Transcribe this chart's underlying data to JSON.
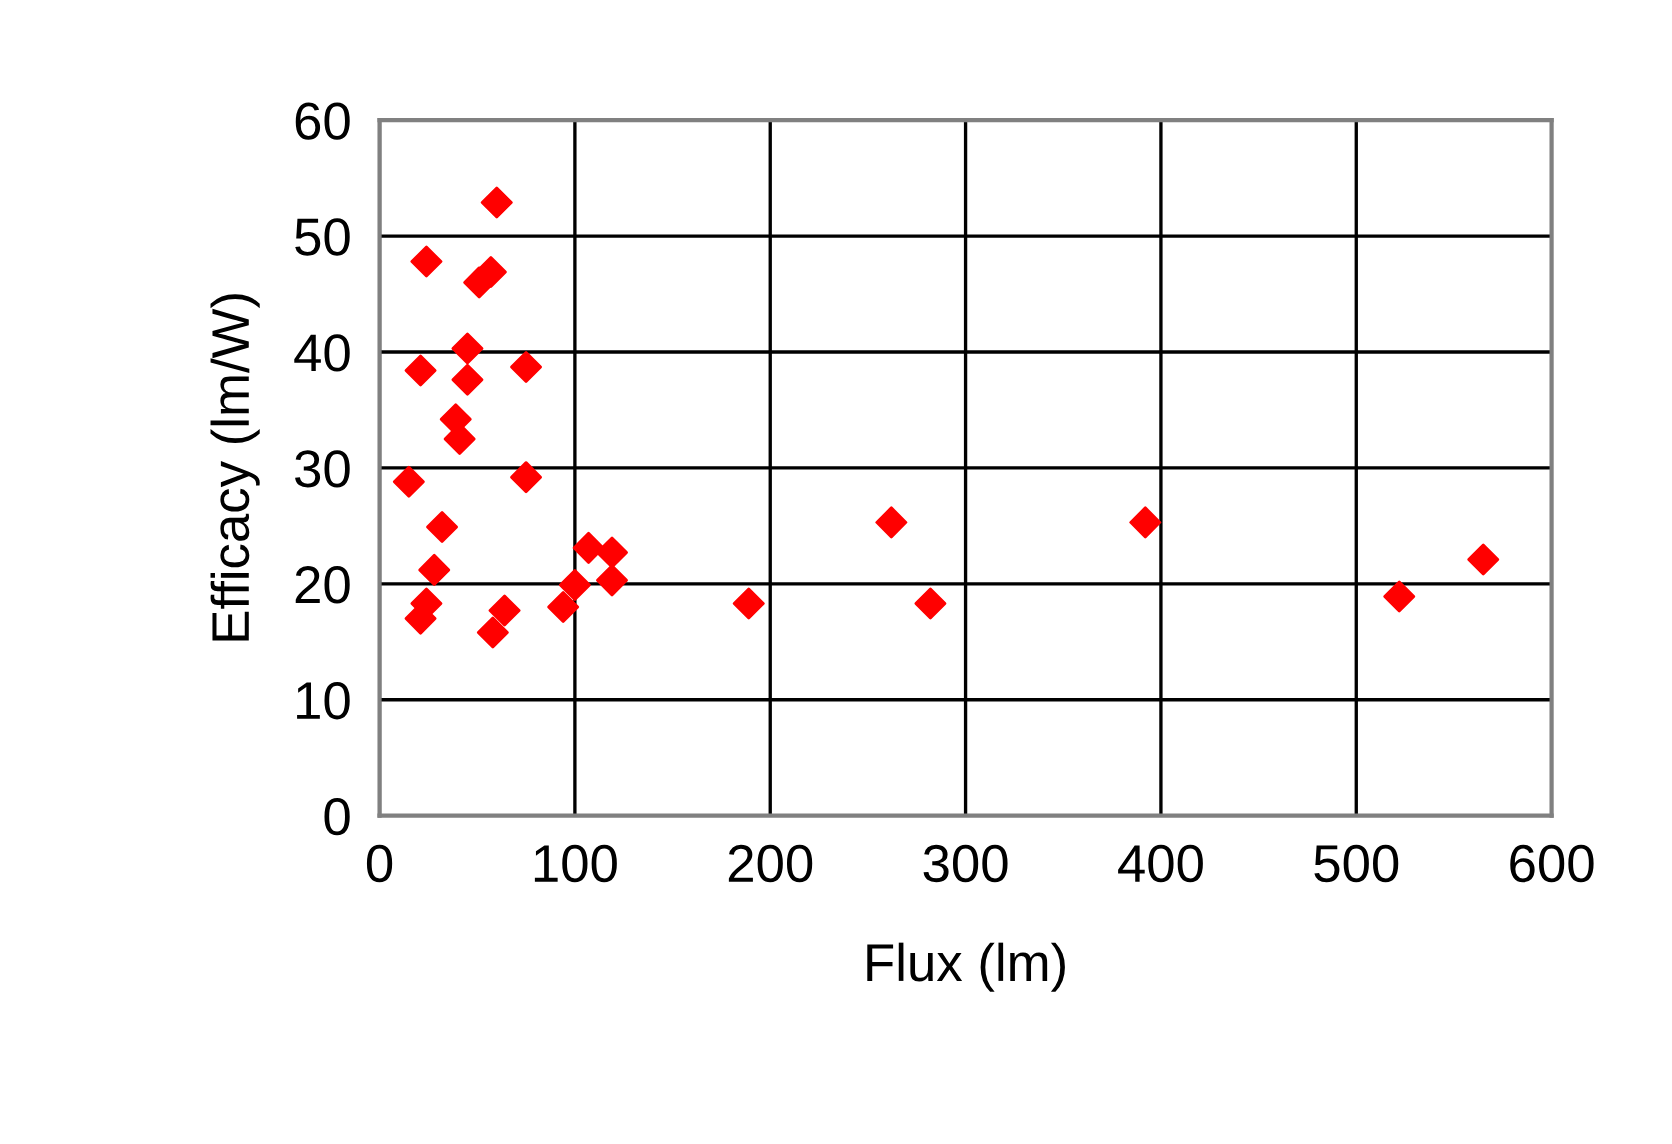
{
  "chart_data": {
    "type": "scatter",
    "xlabel": "Flux (lm)",
    "ylabel": "Efficacy (lm/W)",
    "x": [
      60,
      24,
      51,
      57,
      45,
      21,
      45,
      75,
      39,
      41,
      15,
      75,
      32,
      28,
      24,
      21,
      64,
      58,
      94,
      100,
      107,
      119,
      119,
      189,
      262,
      282,
      392,
      522,
      565
    ],
    "series": [
      {
        "color": "#ff0000",
        "values": [
          52.9,
          47.8,
          46.0,
          46.9,
          40.3,
          38.4,
          37.6,
          38.7,
          34.2,
          32.5,
          28.8,
          29.2,
          24.9,
          21.2,
          18.3,
          17.0,
          17.7,
          15.8,
          18.0,
          19.9,
          23.1,
          22.7,
          20.3,
          18.3,
          25.3,
          18.3,
          25.3,
          18.9,
          22.1
        ]
      }
    ],
    "marker": "diamond",
    "xlim": [
      0,
      600
    ],
    "ylim": [
      0,
      60
    ],
    "xticks": [
      0,
      100,
      200,
      300,
      400,
      500,
      600
    ],
    "yticks": [
      0,
      10,
      20,
      30,
      40,
      50,
      60
    ],
    "grid": true,
    "legend": false
  }
}
